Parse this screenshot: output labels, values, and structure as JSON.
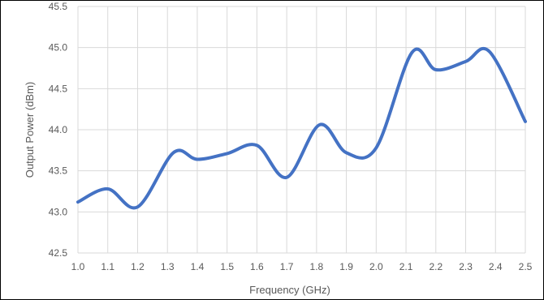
{
  "chart_data": {
    "type": "line",
    "title": "",
    "xlabel": "Frequency (GHz)",
    "ylabel": "Output Power (dBm)",
    "xlim": [
      1.0,
      2.5
    ],
    "ylim": [
      42.5,
      45.5
    ],
    "x_ticks": [
      "1.0",
      "1.1",
      "1.2",
      "1.3",
      "1.4",
      "1.5",
      "1.6",
      "1.7",
      "1.8",
      "1.9",
      "2.0",
      "2.1",
      "2.2",
      "2.3",
      "2.4",
      "2.5"
    ],
    "y_ticks": [
      "42.5",
      "43.0",
      "43.5",
      "44.0",
      "44.5",
      "45.0",
      "45.5"
    ],
    "grid": true,
    "legend": "none",
    "series": [
      {
        "color": "#4472c4",
        "points": [
          [
            1.0,
            43.12
          ],
          [
            1.1,
            43.28
          ],
          [
            1.2,
            43.06
          ],
          [
            1.32,
            43.72
          ],
          [
            1.4,
            43.64
          ],
          [
            1.5,
            43.71
          ],
          [
            1.6,
            43.81
          ],
          [
            1.7,
            43.42
          ],
          [
            1.81,
            44.06
          ],
          [
            1.9,
            43.72
          ],
          [
            2.0,
            43.78
          ],
          [
            2.12,
            44.94
          ],
          [
            2.2,
            44.73
          ],
          [
            2.3,
            44.83
          ],
          [
            2.38,
            44.95
          ],
          [
            2.5,
            44.1
          ]
        ]
      }
    ],
    "colors": {
      "grid": "#d9d9d9",
      "tick_text": "#595959",
      "border": "#000000"
    }
  }
}
